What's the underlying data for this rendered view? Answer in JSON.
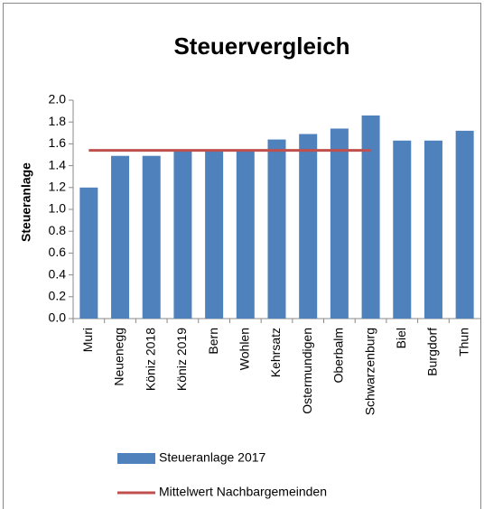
{
  "chart_data": {
    "type": "bar",
    "title": "Steuervergleich",
    "y_label": "Steueranlage",
    "categories": [
      "Muri",
      "Neuenegg",
      "Köniz 2018",
      "Köniz 2019",
      "Bern",
      "Wohlen",
      "Kehrsatz",
      "Ostermundigen",
      "Oberbalm",
      "Schwarzenburg",
      "Biel",
      "Burgdorf",
      "Thun"
    ],
    "series": [
      {
        "name": "Steueranlage 2017",
        "type": "bar",
        "color": "#4f81bd",
        "values": [
          1.2,
          1.49,
          1.49,
          1.54,
          1.54,
          1.54,
          1.64,
          1.69,
          1.74,
          1.86,
          1.63,
          1.63,
          1.72
        ]
      },
      {
        "name": "Mittelwert Nachbargemeinden",
        "type": "line",
        "color": "#c0504d",
        "values": [
          1.54,
          1.54,
          1.54,
          1.54,
          1.54,
          1.54,
          1.54,
          1.54,
          1.54,
          1.54,
          null,
          null,
          null
        ]
      }
    ],
    "ylim": [
      0,
      2
    ],
    "yticks": [
      {
        "value": 0,
        "label": "0.0"
      },
      0.2,
      0.4,
      0.6,
      0.8,
      {
        "value": 1,
        "label": "1.0"
      },
      1.2,
      1.4,
      1.6,
      1.8,
      {
        "value": 2,
        "label": "2.0"
      }
    ],
    "grid": false,
    "legend": "bottom"
  }
}
